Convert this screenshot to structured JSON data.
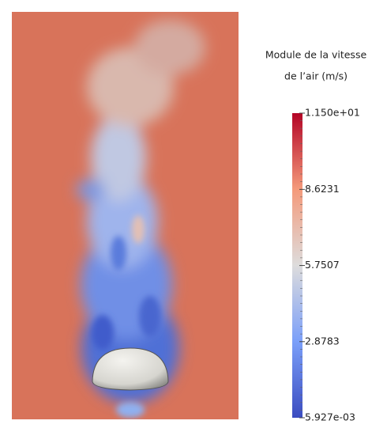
{
  "colorbar": {
    "title_lines": [
      "Module de la vitesse",
      "de l’air  (m/s)"
    ],
    "lim": [
      0.005927,
      11.5
    ],
    "ticks": [
      {
        "value": 11.5,
        "label": "1.150e+01"
      },
      8.6231,
      5.7507,
      2.8783,
      {
        "value": 0.005927,
        "label": "5.927e-03"
      }
    ]
  }
}
